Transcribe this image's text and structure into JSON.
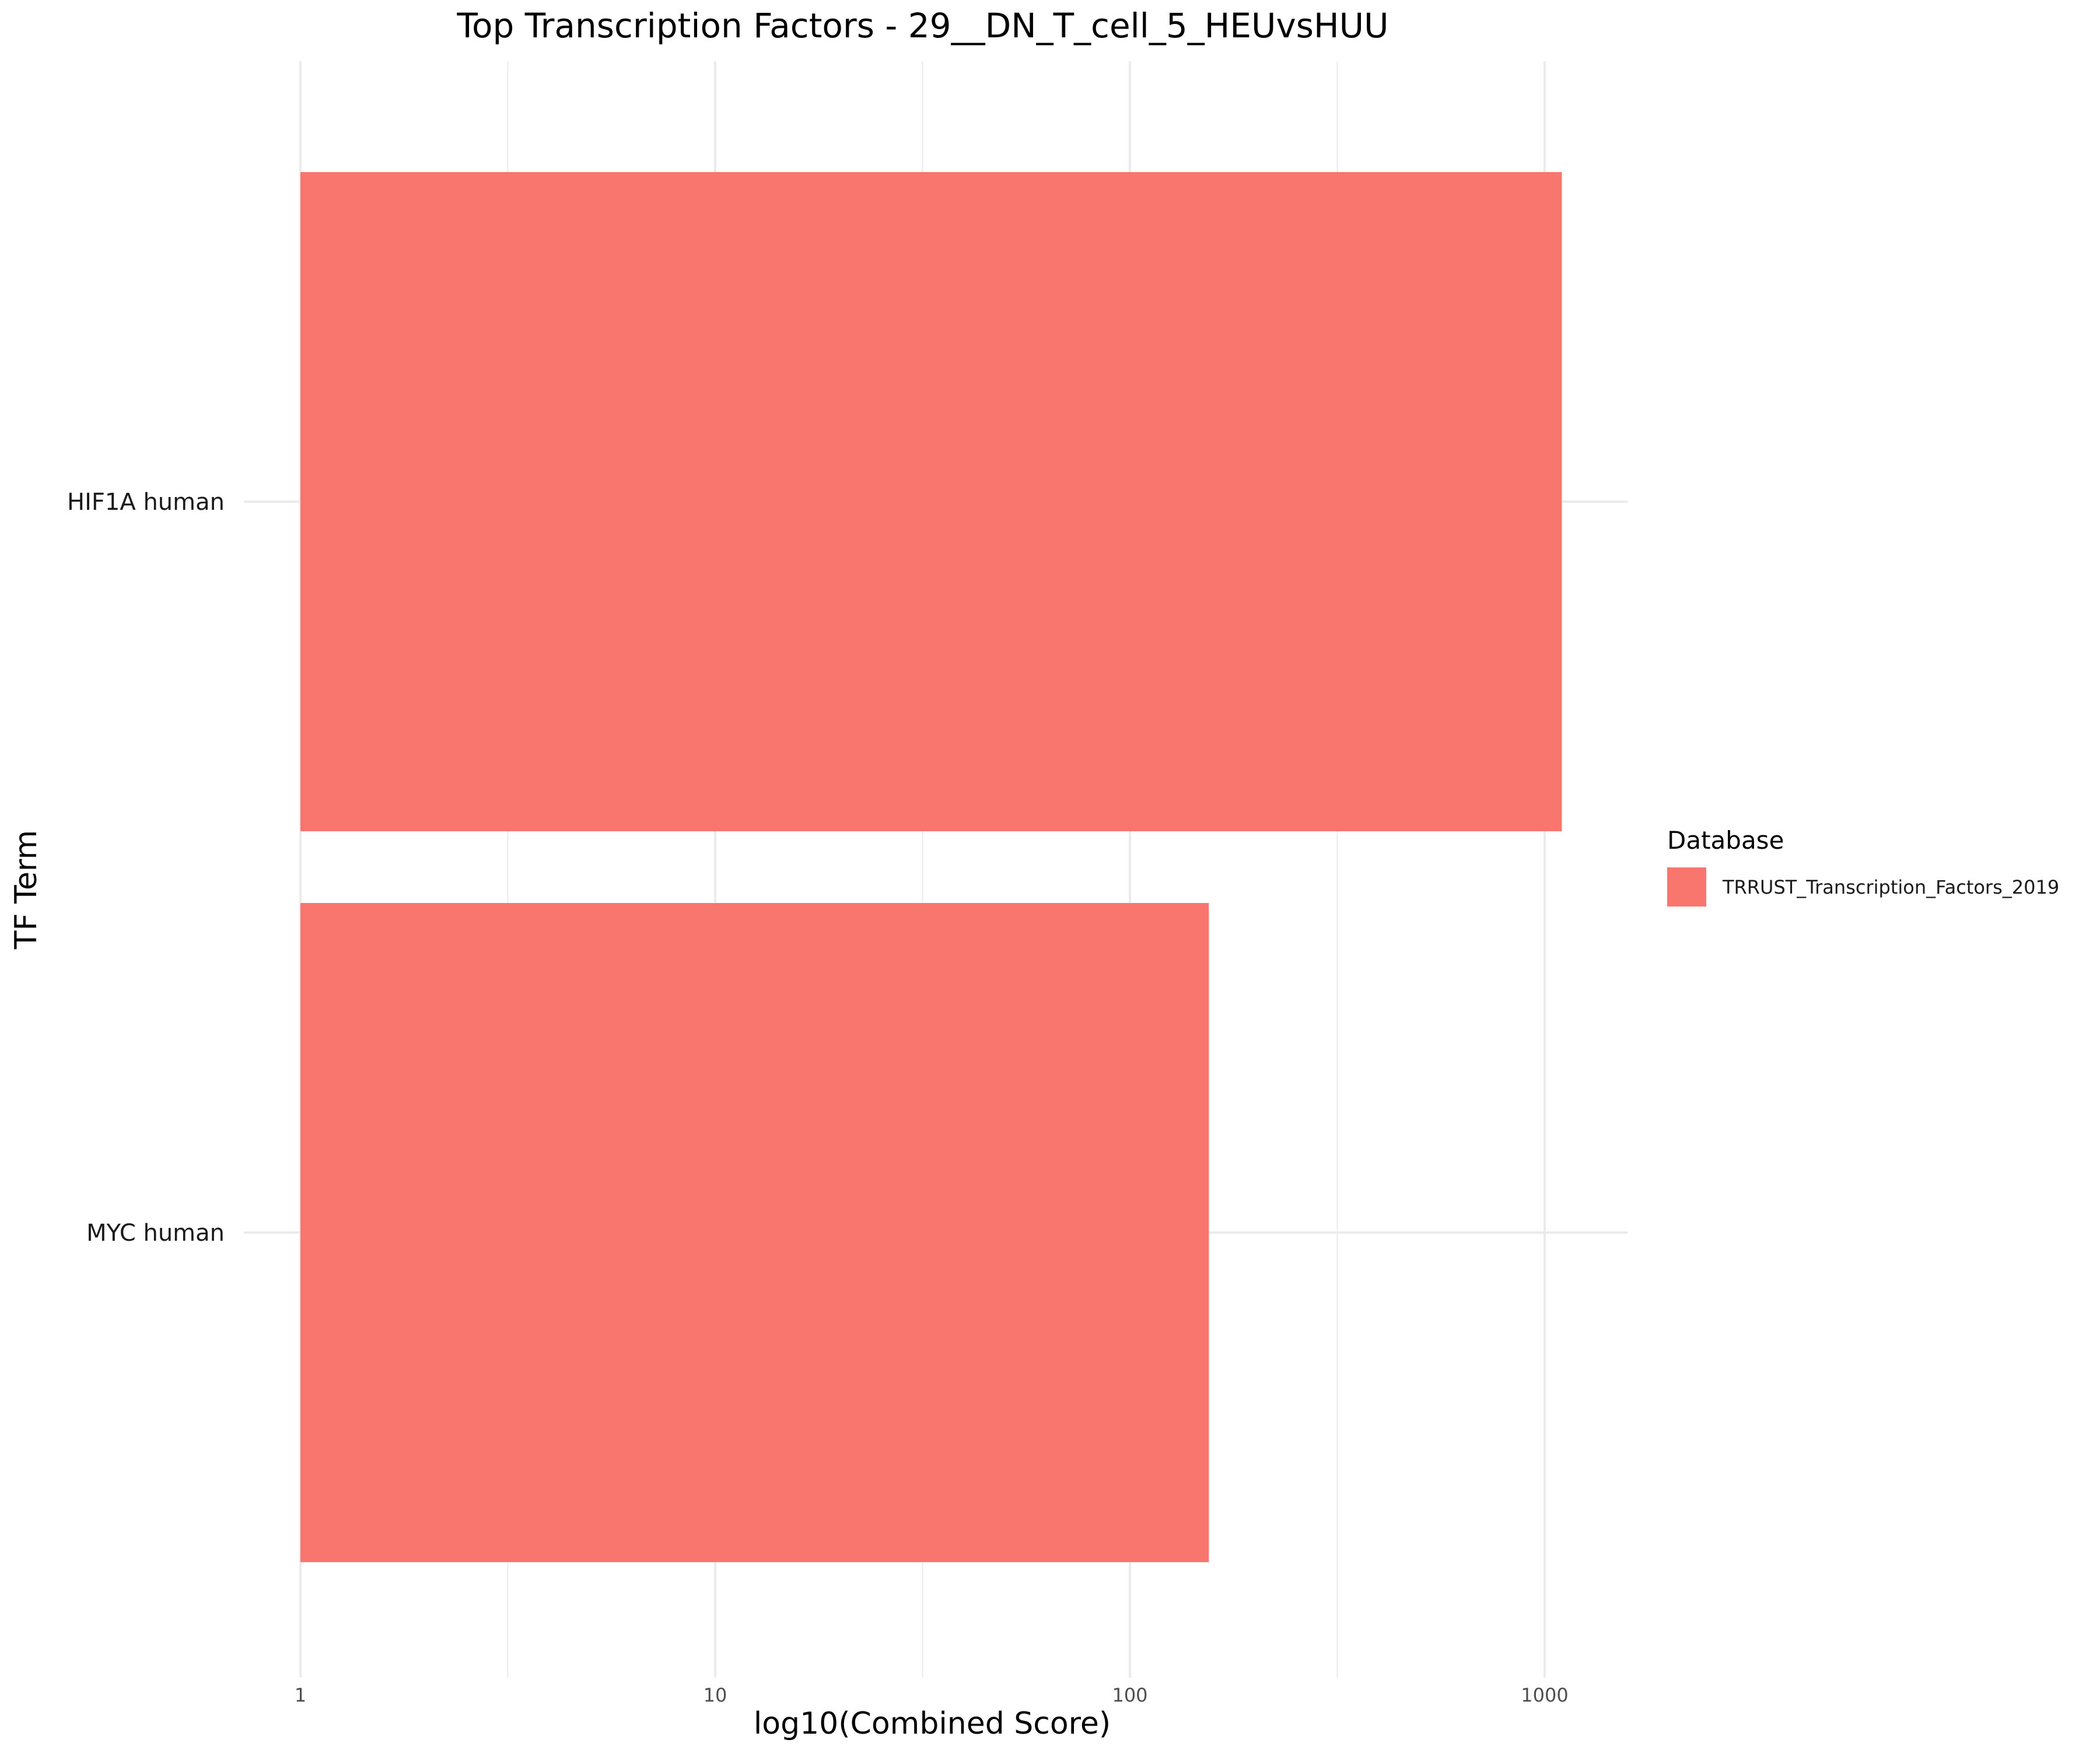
{
  "chart_data": {
    "type": "bar",
    "orientation": "horizontal",
    "title": "Top Transcription Factors - 29__DN_T_cell_5_HEUvsHUU",
    "xlabel": "log10(Combined Score)",
    "ylabel": "TF Term",
    "x_scale": "log10",
    "xlim": [
      1,
      1600
    ],
    "x_ticks": [
      1,
      10,
      100,
      1000
    ],
    "x_tick_labels": [
      "1",
      "10",
      "100",
      "1000"
    ],
    "grid": true,
    "categories": [
      "HIF1A human",
      "MYC human"
    ],
    "series": [
      {
        "name": "TRRUST_Transcription_Factors_2019",
        "color": "#F8766D",
        "values": [
          1100,
          155
        ]
      }
    ],
    "legend": {
      "title": "Database",
      "position": "right",
      "entries": [
        "TRRUST_Transcription_Factors_2019"
      ]
    }
  }
}
